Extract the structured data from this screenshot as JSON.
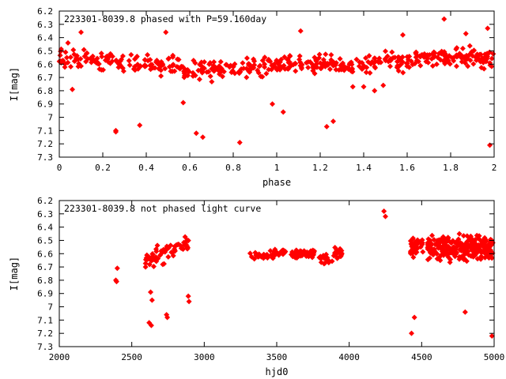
{
  "colors": {
    "series": "#ff0000",
    "axes": "#000000",
    "background": "#ffffff"
  },
  "chart_data": [
    {
      "type": "scatter",
      "title": "223301-8039.8 phased with P=59.160day",
      "xlabel": "phase",
      "ylabel": "I[mag]",
      "xlim": [
        0,
        2
      ],
      "ylim": [
        7.3,
        6.2
      ],
      "y_inverted": true,
      "grid": false,
      "legend": "none",
      "xticks": [
        "0",
        "0.2",
        "0.4",
        "0.6",
        "0.8",
        "1",
        "1.2",
        "1.4",
        "1.6",
        "1.8",
        "2"
      ],
      "yticks": [
        "6.2",
        "6.3",
        "6.4",
        "6.5",
        "6.6",
        "6.7",
        "6.8",
        "6.9",
        "7",
        "7.1",
        "7.2",
        "7.3"
      ],
      "marker": "filled-diamond",
      "outliers": [
        [
          0.06,
          6.79
        ],
        [
          0.26,
          7.1
        ],
        [
          0.26,
          7.11
        ],
        [
          0.37,
          7.06
        ],
        [
          0.57,
          6.89
        ],
        [
          0.63,
          7.12
        ],
        [
          0.66,
          7.15
        ],
        [
          0.83,
          7.19
        ],
        [
          0.98,
          6.9
        ],
        [
          1.03,
          6.96
        ],
        [
          1.23,
          7.07
        ],
        [
          1.26,
          7.03
        ],
        [
          1.35,
          6.77
        ],
        [
          1.4,
          6.77
        ],
        [
          1.98,
          7.21
        ],
        [
          1.77,
          6.26
        ],
        [
          1.11,
          6.35
        ],
        [
          1.58,
          6.38
        ],
        [
          1.87,
          6.37
        ],
        [
          1.97,
          6.33
        ],
        [
          0.1,
          6.36
        ],
        [
          0.04,
          6.44
        ],
        [
          0.49,
          6.36
        ],
        [
          1.45,
          6.8
        ],
        [
          1.49,
          6.76
        ]
      ],
      "bulk": {
        "description_of_trend": "dense band of points",
        "band_center_by_phase": [
          [
            0.0,
            6.56
          ],
          [
            0.1,
            6.57
          ],
          [
            0.2,
            6.57
          ],
          [
            0.3,
            6.58
          ],
          [
            0.4,
            6.59
          ],
          [
            0.5,
            6.61
          ],
          [
            0.6,
            6.63
          ],
          [
            0.7,
            6.64
          ],
          [
            0.8,
            6.63
          ],
          [
            0.9,
            6.62
          ],
          [
            1.0,
            6.6
          ],
          [
            1.1,
            6.59
          ],
          [
            1.2,
            6.6
          ],
          [
            1.3,
            6.61
          ],
          [
            1.4,
            6.6
          ],
          [
            1.5,
            6.59
          ],
          [
            1.6,
            6.58
          ],
          [
            1.7,
            6.56
          ],
          [
            1.8,
            6.56
          ],
          [
            1.9,
            6.55
          ],
          [
            2.0,
            6.56
          ]
        ],
        "band_halfwidth": 0.12,
        "point_count": 520
      }
    },
    {
      "type": "scatter",
      "title": "223301-8039.8 not phased light curve",
      "xlabel": "hjd0",
      "ylabel": "I[mag]",
      "xlim": [
        2000,
        5000
      ],
      "ylim": [
        7.3,
        6.2
      ],
      "y_inverted": true,
      "grid": false,
      "legend": "none",
      "xticks": [
        "2000",
        "2500",
        "3000",
        "3500",
        "4000",
        "4500",
        "5000"
      ],
      "yticks": [
        "6.2",
        "6.3",
        "6.4",
        "6.5",
        "6.6",
        "6.7",
        "6.8",
        "6.9",
        "7",
        "7.1",
        "7.2",
        "7.3"
      ],
      "marker": "filled-diamond",
      "outliers": [
        [
          2390,
          6.8
        ],
        [
          2395,
          6.81
        ],
        [
          2400,
          6.71
        ],
        [
          2620,
          7.12
        ],
        [
          2635,
          7.14
        ],
        [
          2630,
          6.89
        ],
        [
          2640,
          6.95
        ],
        [
          2740,
          7.06
        ],
        [
          2745,
          7.08
        ],
        [
          2890,
          6.92
        ],
        [
          2895,
          6.96
        ],
        [
          4240,
          6.28
        ],
        [
          4250,
          6.32
        ],
        [
          4430,
          7.2
        ],
        [
          4450,
          7.08
        ],
        [
          4800,
          7.04
        ],
        [
          4985,
          7.22
        ]
      ],
      "clusters": [
        {
          "x_range": [
            2590,
            2900
          ],
          "y_center": 6.58,
          "y_spread": 0.12,
          "count": 60,
          "slope": -0.00045
        },
        {
          "x_range": [
            3310,
            3440
          ],
          "y_center": 6.62,
          "y_spread": 0.05,
          "count": 22,
          "slope": 0
        },
        {
          "x_range": [
            3450,
            3560
          ],
          "y_center": 6.6,
          "y_spread": 0.06,
          "count": 30,
          "slope": 0
        },
        {
          "x_range": [
            3600,
            3760
          ],
          "y_center": 6.6,
          "y_spread": 0.05,
          "count": 55,
          "slope": 0
        },
        {
          "x_range": [
            3790,
            3860
          ],
          "y_center": 6.64,
          "y_spread": 0.05,
          "count": 18,
          "slope": 0
        },
        {
          "x_range": [
            3880,
            3950
          ],
          "y_center": 6.6,
          "y_spread": 0.08,
          "count": 25,
          "slope": 0
        },
        {
          "x_range": [
            4420,
            4510
          ],
          "y_center": 6.55,
          "y_spread": 0.12,
          "count": 40,
          "slope": 0
        },
        {
          "x_range": [
            4540,
            4990
          ],
          "y_center": 6.56,
          "y_spread": 0.16,
          "count": 260,
          "slope": 0
        }
      ]
    }
  ]
}
